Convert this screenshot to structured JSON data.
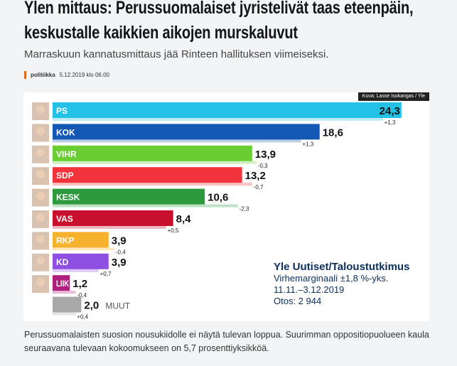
{
  "article": {
    "title": "Ylen mittaus: Perussuomalaiset jyristelivät taas eteenpäin, keskustalle kaikkien aikojen murskaluvut",
    "lead": "Marraskuun kannatusmittaus jää Rinteen hallituksen viimeiseksi.",
    "category": "politiikka",
    "date": "5.12.2019 klo 06.00",
    "photo_credit": "Kuva: Lasse Isokangas / Yle",
    "body": "Perussuomalaisten suosion nousukiidolle ei näytä tulevan loppua. Suurimman oppositiopuolueen kaula seuraavana tulevaan kokoomukseen on 5,7 prosenttiyksikköä.",
    "accent": "#e06a1b"
  },
  "chart_data": {
    "type": "bar",
    "orientation": "horizontal",
    "categories": [
      "PS",
      "KOK",
      "VIHR",
      "SDP",
      "KESK",
      "VAS",
      "RKP",
      "KD",
      "LIIK",
      "MUUT"
    ],
    "values": [
      24.3,
      18.6,
      13.9,
      13.2,
      10.6,
      8.4,
      3.9,
      3.9,
      1.2,
      2.0
    ],
    "value_labels": [
      "24,3",
      "18,6",
      "13,9",
      "13,2",
      "10,6",
      "8,4",
      "3,9",
      "3,9",
      "1,2",
      "2,0"
    ],
    "changes": [
      1.3,
      1.3,
      -0.3,
      -0.7,
      -2.3,
      0.5,
      -0.4,
      0.7,
      -0.4,
      0.4
    ],
    "change_labels": [
      "+1,3",
      "+1,3",
      "-0,3",
      "-0,7",
      "-2,3",
      "+0,5",
      "-0,4",
      "+0,7",
      "-0,4",
      "+0,4"
    ],
    "colors": [
      "#23c1e6",
      "#1358b4",
      "#6acd32",
      "#f2333b",
      "#2e9a3e",
      "#c8102e",
      "#f6b12d",
      "#8f4fe0",
      "#b01e7e",
      "#a8a8a8"
    ],
    "muut_label": "MUUT",
    "source": {
      "title": "Yle Uutiset/Taloustutkimus",
      "margin": "Virhemarginaali ±1,8 %-yks.",
      "period": "11.11.–3.12.2019",
      "sample": "Otos: 2 944"
    }
  }
}
